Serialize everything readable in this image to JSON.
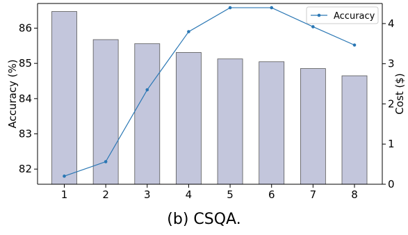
{
  "chart_data": {
    "type": "bar+line",
    "categories": [
      "1",
      "2",
      "3",
      "4",
      "5",
      "6",
      "7",
      "8"
    ],
    "bar_series": {
      "axis": "right",
      "values": [
        4.3,
        3.6,
        3.5,
        3.28,
        3.12,
        3.05,
        2.88,
        2.7
      ]
    },
    "line_series": {
      "name": "Accuracy",
      "axis": "left",
      "values": [
        81.8,
        82.21,
        84.25,
        85.9,
        86.58,
        86.58,
        86.04,
        85.52
      ]
    },
    "ylabel_left": "Accuracy (%)",
    "ylabel_right": "Cost ($)",
    "ylim_left": [
      81.57,
      86.7
    ],
    "ylim_right": [
      0,
      4.5
    ],
    "yticks_left": [
      "82",
      "83",
      "84",
      "85",
      "86"
    ],
    "yticks_right": [
      "0",
      "1",
      "2",
      "3",
      "4"
    ],
    "legend": {
      "label": "Accuracy",
      "position": "top-right"
    },
    "grid": false,
    "colors": {
      "bar_fill": "#c3c6dc",
      "bar_edge": "#555555",
      "line": "#2a77b4"
    }
  },
  "caption": "(b) CSQA."
}
